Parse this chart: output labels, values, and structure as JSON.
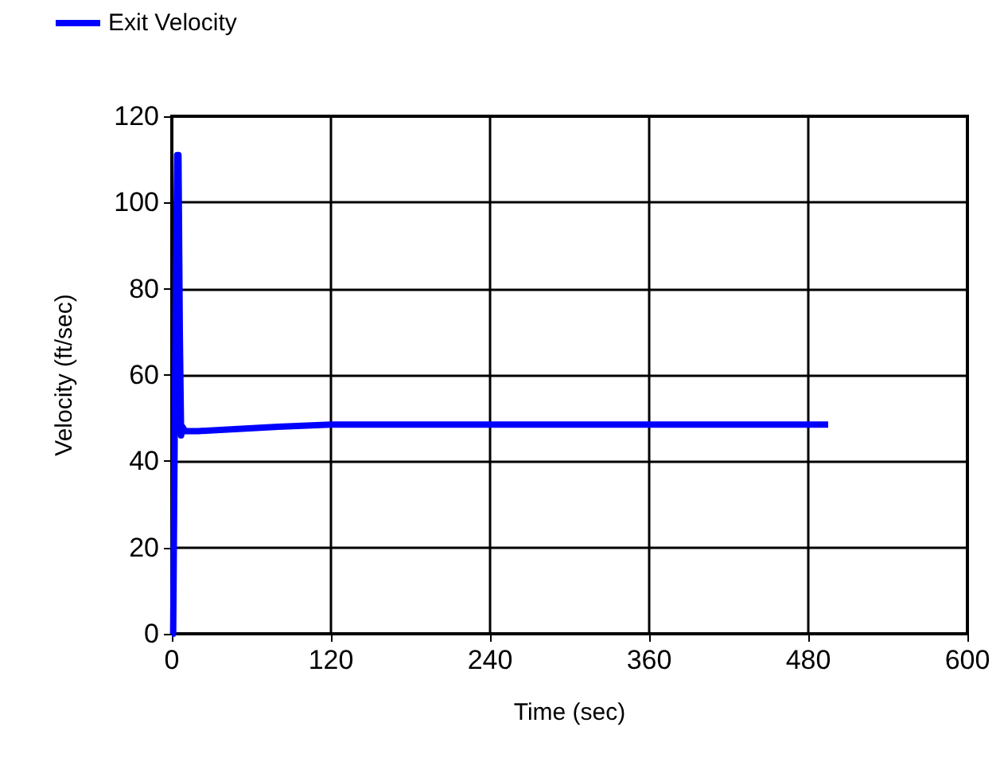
{
  "chart_data": {
    "type": "line",
    "xlabel": "Time (sec)",
    "ylabel": "Velocity (ft/sec)",
    "series": [
      {
        "name": "Exit Velocity",
        "color": "#0000ff",
        "x": [
          0,
          1,
          2,
          3,
          4,
          5,
          6,
          7,
          8,
          10,
          20,
          50,
          80,
          120,
          240,
          360,
          495
        ],
        "values": [
          0,
          0,
          40,
          80,
          111,
          111,
          70,
          46,
          48,
          47,
          47,
          47.5,
          48,
          48.5,
          48.5,
          48.5,
          48.5
        ]
      }
    ],
    "xlim": [
      0,
      600
    ],
    "xticks": [
      0,
      120,
      240,
      360,
      480,
      600
    ],
    "ylim": [
      0,
      120
    ],
    "yticks": [
      0,
      20,
      40,
      60,
      80,
      100,
      120
    ],
    "grid": true,
    "legend": "top left",
    "marker": "none",
    "line_style": "solid"
  }
}
